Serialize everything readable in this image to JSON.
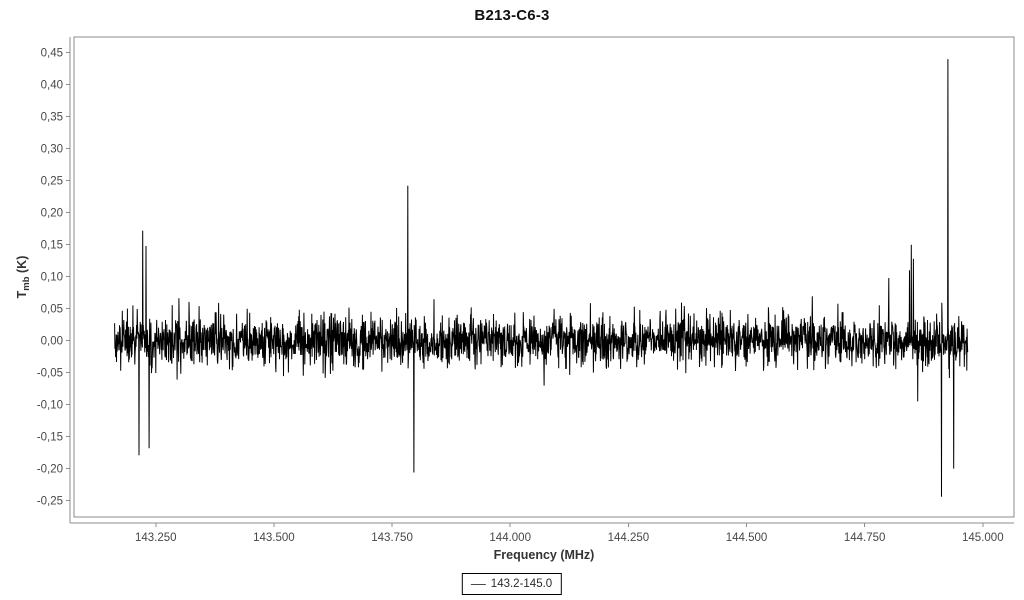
{
  "window": {
    "background": "#ffffff"
  },
  "chart": {
    "title": "B213-C6-3",
    "xlabel": "Frequency (MHz)",
    "ylabel": {
      "prefix": "T",
      "sub": "mb",
      "suffix": " (K)"
    },
    "legend_label": "143.2-145.0"
  },
  "chart_data": {
    "type": "line",
    "title": "B213-C6-3",
    "xlabel": "Frequency (MHz)",
    "ylabel": "T_mb (K)",
    "series": [
      {
        "name": "143.2-145.0",
        "color": "#000000"
      }
    ],
    "xlim": [
      143.077,
      145.066
    ],
    "ylim": [
      -0.2756,
      0.4746
    ],
    "x_ticks": [
      143.25,
      143.5,
      143.75,
      144.0,
      144.25,
      144.5,
      144.75,
      145.0
    ],
    "x_tick_labels": [
      "143.250",
      "143.500",
      "143.750",
      "144.000",
      "144.250",
      "144.500",
      "144.750",
      "145.000"
    ],
    "y_ticks": [
      0.45,
      0.4,
      0.35,
      0.3,
      0.25,
      0.2,
      0.15,
      0.1,
      0.05,
      0.0,
      -0.05,
      -0.1,
      -0.15,
      -0.2,
      -0.25
    ],
    "y_tick_labels": [
      "0,45",
      "0,40",
      "0,35",
      "0,30",
      "0,25",
      "0,20",
      "0,15",
      "0,10",
      "0,05",
      "0,00",
      "-0,05",
      "-0,10",
      "-0,15",
      "-0,20",
      "-0,25"
    ],
    "grid": false,
    "legend_position": "bottom-center",
    "frame_color": "#8c8c8c",
    "tick_label_color": "#474747",
    "line_color": "#000000",
    "noise": {
      "x_start_MHz": 143.163,
      "x_end_MHz": 144.968,
      "baseline_K": 0.0,
      "sigma_K": 0.0195,
      "n_channels": 2800,
      "seed": 20
    },
    "spikes": [
      {
        "freq_MHz": 143.2143,
        "T_K": -0.179
      },
      {
        "freq_MHz": 143.2224,
        "T_K": 0.172
      },
      {
        "freq_MHz": 143.2296,
        "T_K": 0.148
      },
      {
        "freq_MHz": 143.236,
        "T_K": -0.168
      },
      {
        "freq_MHz": 143.7832,
        "T_K": 0.242
      },
      {
        "freq_MHz": 143.796,
        "T_K": -0.206
      },
      {
        "freq_MHz": 144.801,
        "T_K": 0.098
      },
      {
        "freq_MHz": 144.845,
        "T_K": 0.11
      },
      {
        "freq_MHz": 144.849,
        "T_K": 0.15
      },
      {
        "freq_MHz": 144.853,
        "T_K": 0.128
      },
      {
        "freq_MHz": 144.862,
        "T_K": -0.095
      },
      {
        "freq_MHz": 144.9125,
        "T_K": -0.244
      },
      {
        "freq_MHz": 144.926,
        "T_K": 0.44
      },
      {
        "freq_MHz": 144.9385,
        "T_K": -0.2
      }
    ]
  }
}
